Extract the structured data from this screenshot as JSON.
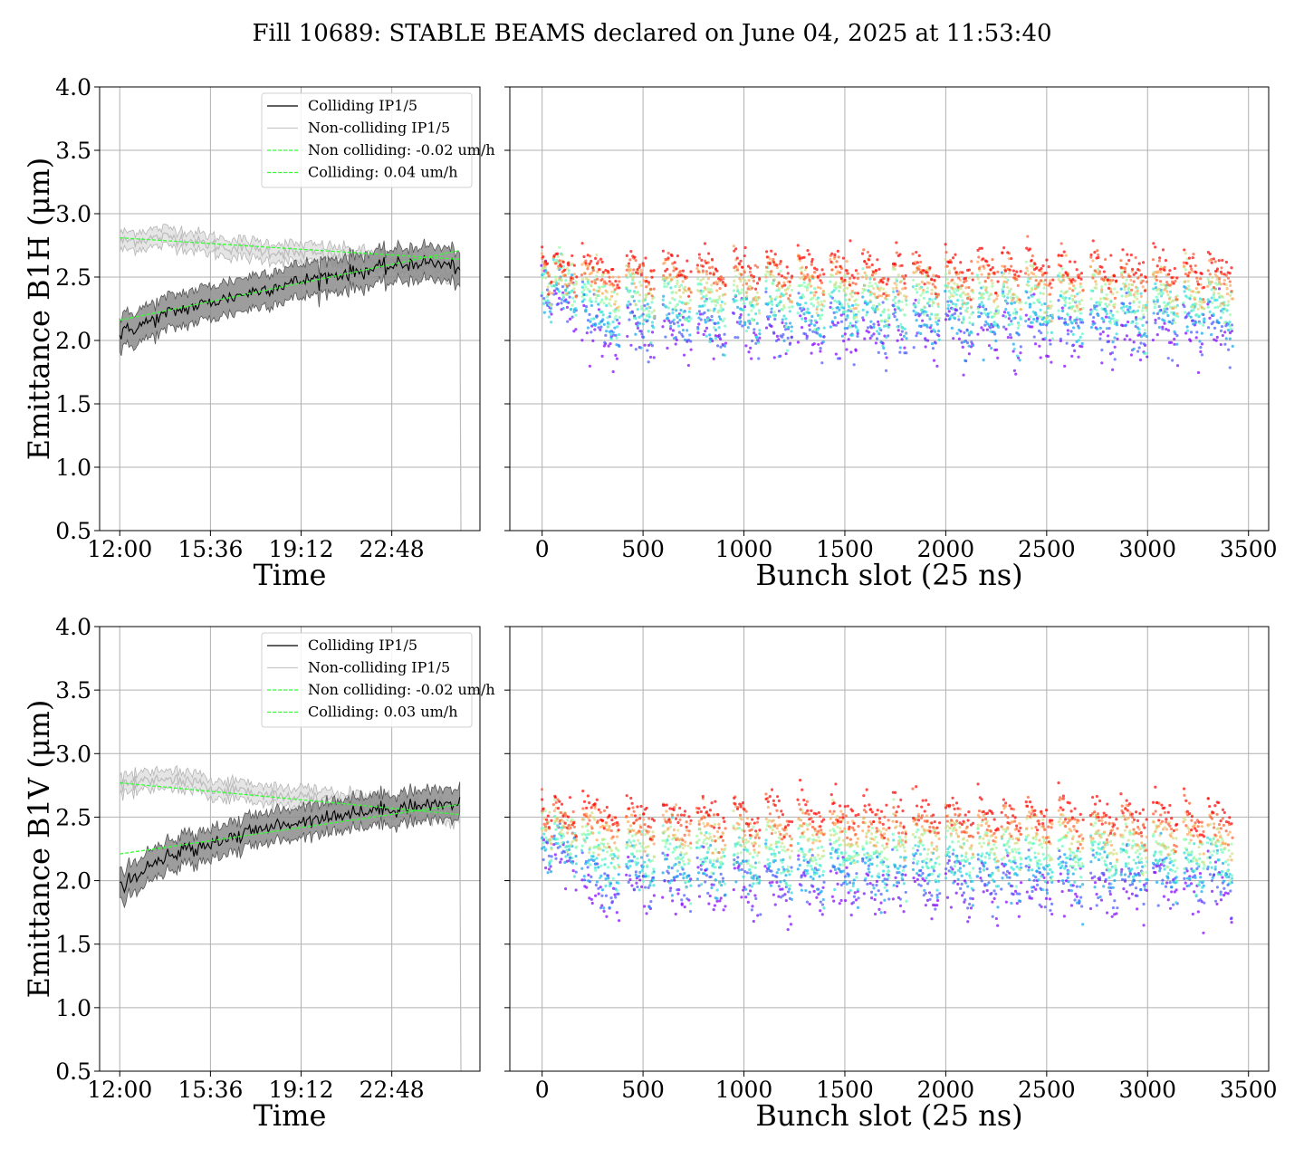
{
  "title": "Fill 10689: STABLE BEAMS declared on June 04, 2025 at 11:53:40",
  "colors": {
    "colliding": "#000000",
    "colliding_band": "#8c8c8c",
    "non_colliding": "#c8c8c8",
    "non_colliding_band": "#dcdcdc",
    "fit": "#33ff33",
    "grid": "#b0b0b0"
  },
  "chart_data": [
    {
      "type": "line",
      "panel": "top-left",
      "ylabel": "Emittance B1H (μm)",
      "xlabel": "Time",
      "x_ticks": [
        "12:00",
        "15:36",
        "19:12",
        "22:48"
      ],
      "x_range_hours": [
        -0.8,
        14.3
      ],
      "ylim": [
        0.5,
        4.0
      ],
      "y_ticks": [
        "0.5",
        "1.0",
        "1.5",
        "2.0",
        "2.5",
        "3.0",
        "3.5",
        "4.0"
      ],
      "grid": true,
      "legend_position": "top-right",
      "legend": [
        "Colliding IP1/5",
        "Non-colliding IP1/5",
        "Non colliding: -0.02 um/h",
        "Colliding: 0.04 um/h"
      ],
      "series": [
        {
          "name": "Colliding IP1/5",
          "x": [
            0,
            2,
            4,
            6,
            8,
            10,
            12,
            13.5
          ],
          "y": [
            2.05,
            2.22,
            2.32,
            2.42,
            2.5,
            2.56,
            2.62,
            2.58
          ],
          "band": 0.13
        },
        {
          "name": "Non-colliding IP1/5",
          "x": [
            0,
            2,
            4,
            6,
            8,
            10,
            12,
            13.5
          ],
          "y": [
            2.78,
            2.82,
            2.74,
            2.7,
            2.68,
            2.63,
            2.58,
            2.55
          ],
          "band": 0.07
        },
        {
          "name": "Non colliding: -0.02 um/h",
          "x": [
            0,
            13.5
          ],
          "y": [
            2.81,
            2.64
          ]
        },
        {
          "name": "Colliding: 0.04 um/h",
          "x": [
            0,
            13.5
          ],
          "y": [
            2.16,
            2.71
          ]
        }
      ]
    },
    {
      "type": "scatter",
      "panel": "top-right",
      "xlabel": "Bunch slot (25 ns)",
      "xlim": [
        -160,
        3600
      ],
      "x_ticks": [
        "0",
        "500",
        "1000",
        "1500",
        "2000",
        "2500",
        "3000",
        "3500"
      ],
      "ylim": [
        0.5,
        4.0
      ],
      "grid": true,
      "bunch_trains": [
        [
          0,
          45
        ],
        [
          60,
          170
        ],
        [
          200,
          380
        ],
        [
          420,
          560
        ],
        [
          600,
          740
        ],
        [
          770,
          910
        ],
        [
          950,
          1080
        ],
        [
          1110,
          1240
        ],
        [
          1270,
          1400
        ],
        [
          1430,
          1570
        ],
        [
          1590,
          1720
        ],
        [
          1740,
          1810
        ],
        [
          1840,
          1970
        ],
        [
          2000,
          2140
        ],
        [
          2160,
          2260
        ],
        [
          2280,
          2370
        ],
        [
          2400,
          2530
        ],
        [
          2560,
          2680
        ],
        [
          2720,
          2850
        ],
        [
          2870,
          3000
        ],
        [
          3030,
          3150
        ],
        [
          3180,
          3280
        ],
        [
          3300,
          3420
        ]
      ],
      "color_scale": "rainbow (violet at start of fill to red at end of fill)",
      "value_range_start": [
        1.9,
        2.2
      ],
      "value_range_end": [
        2.4,
        2.75
      ]
    },
    {
      "type": "line",
      "panel": "bottom-left",
      "ylabel": "Emittance B1V (μm)",
      "xlabel": "Time",
      "x_ticks": [
        "12:00",
        "15:36",
        "19:12",
        "22:48"
      ],
      "x_range_hours": [
        -0.8,
        14.3
      ],
      "ylim": [
        0.5,
        4.0
      ],
      "y_ticks": [
        "0.5",
        "1.0",
        "1.5",
        "2.0",
        "2.5",
        "3.0",
        "3.5",
        "4.0"
      ],
      "grid": true,
      "legend_position": "top-right",
      "legend": [
        "Colliding IP1/5",
        "Non-colliding IP1/5",
        "Non colliding: -0.02 um/h",
        "Colliding: 0.03 um/h"
      ],
      "series": [
        {
          "name": "Colliding IP1/5",
          "x": [
            0,
            2,
            4,
            6,
            8,
            10,
            12,
            13.5
          ],
          "y": [
            1.95,
            2.2,
            2.32,
            2.42,
            2.5,
            2.55,
            2.6,
            2.6
          ],
          "band": 0.12
        },
        {
          "name": "Non-colliding IP1/5",
          "x": [
            0,
            2,
            4,
            6,
            8,
            10,
            12,
            13.5
          ],
          "y": [
            2.75,
            2.8,
            2.72,
            2.68,
            2.64,
            2.6,
            2.55,
            2.52
          ],
          "band": 0.07
        },
        {
          "name": "Non colliding: -0.02 um/h",
          "x": [
            0,
            13.5
          ],
          "y": [
            2.77,
            2.52
          ]
        },
        {
          "name": "Colliding: 0.03 um/h",
          "x": [
            0,
            13.5
          ],
          "y": [
            2.21,
            2.6
          ]
        }
      ]
    },
    {
      "type": "scatter",
      "panel": "bottom-right",
      "xlabel": "Bunch slot (25 ns)",
      "xlim": [
        -160,
        3600
      ],
      "x_ticks": [
        "0",
        "500",
        "1000",
        "1500",
        "2000",
        "2500",
        "3000",
        "3500"
      ],
      "ylim": [
        0.5,
        4.0
      ],
      "grid": true,
      "bunch_trains": [
        [
          0,
          45
        ],
        [
          60,
          170
        ],
        [
          200,
          380
        ],
        [
          420,
          560
        ],
        [
          600,
          740
        ],
        [
          770,
          910
        ],
        [
          950,
          1080
        ],
        [
          1110,
          1240
        ],
        [
          1270,
          1400
        ],
        [
          1430,
          1570
        ],
        [
          1590,
          1720
        ],
        [
          1740,
          1810
        ],
        [
          1840,
          1970
        ],
        [
          2000,
          2140
        ],
        [
          2160,
          2260
        ],
        [
          2280,
          2370
        ],
        [
          2400,
          2530
        ],
        [
          2560,
          2680
        ],
        [
          2720,
          2850
        ],
        [
          2870,
          3000
        ],
        [
          3030,
          3150
        ],
        [
          3180,
          3280
        ],
        [
          3300,
          3420
        ]
      ],
      "color_scale": "rainbow (violet at start of fill to red at end of fill)",
      "value_range_start": [
        1.75,
        2.1
      ],
      "value_range_end": [
        2.4,
        2.65
      ]
    }
  ]
}
